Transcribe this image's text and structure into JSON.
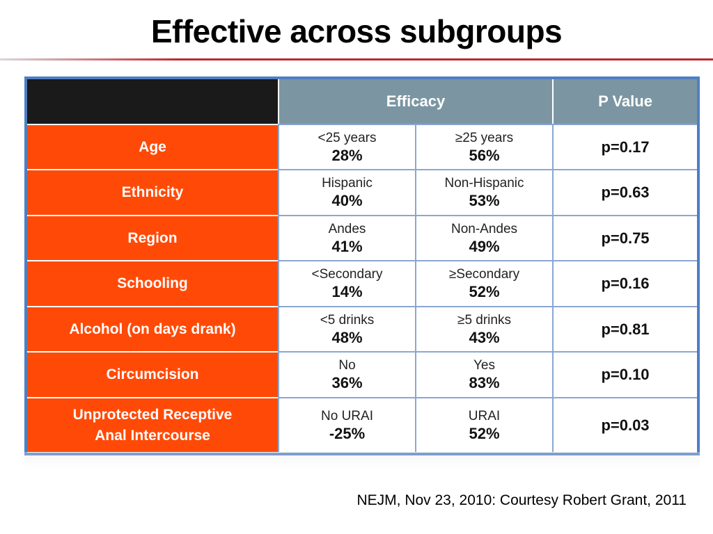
{
  "slide": {
    "title": "Effective across subgroups",
    "footnote": "NEJM, Nov 23, 2010: Courtesy Robert Grant, 2011"
  },
  "table": {
    "headers": {
      "efficacy": "Efficacy",
      "p_value": "P Value"
    },
    "rows": [
      {
        "label": [
          "Age"
        ],
        "group_a": "<25 years",
        "value_a": "28%",
        "group_b": "≥25 years",
        "value_b": "56%",
        "p": "p=0.17"
      },
      {
        "label": [
          "Ethnicity"
        ],
        "group_a": "Hispanic",
        "value_a": "40%",
        "group_b": "Non-Hispanic",
        "value_b": "53%",
        "p": "p=0.63"
      },
      {
        "label": [
          "Region"
        ],
        "group_a": "Andes",
        "value_a": "41%",
        "group_b": "Non-Andes",
        "value_b": "49%",
        "p": "p=0.75"
      },
      {
        "label": [
          "Schooling"
        ],
        "group_a": "<Secondary",
        "value_a": "14%",
        "group_b": "≥Secondary",
        "value_b": "52%",
        "p": "p=0.16"
      },
      {
        "label": [
          "Alcohol (on days drank)"
        ],
        "group_a": "<5 drinks",
        "value_a": "48%",
        "group_b": "≥5 drinks",
        "value_b": "43%",
        "p": "p=0.81"
      },
      {
        "label": [
          "Circumcision"
        ],
        "group_a": "No",
        "value_a": "36%",
        "group_b": "Yes",
        "value_b": "83%",
        "p": "p=0.10"
      },
      {
        "label": [
          "Unprotected Receptive",
          "Anal Intercourse"
        ],
        "group_a": "No URAI",
        "value_a": "-25%",
        "group_b": "URAI",
        "value_b": "52%",
        "p": "p=0.03"
      }
    ]
  },
  "colors": {
    "label_bg": "#ff4a07",
    "header_bg": "#7b96a2",
    "corner_bg": "#1a1a1a",
    "frame": "#4e7fc2",
    "title_rule": "#c2262f"
  }
}
